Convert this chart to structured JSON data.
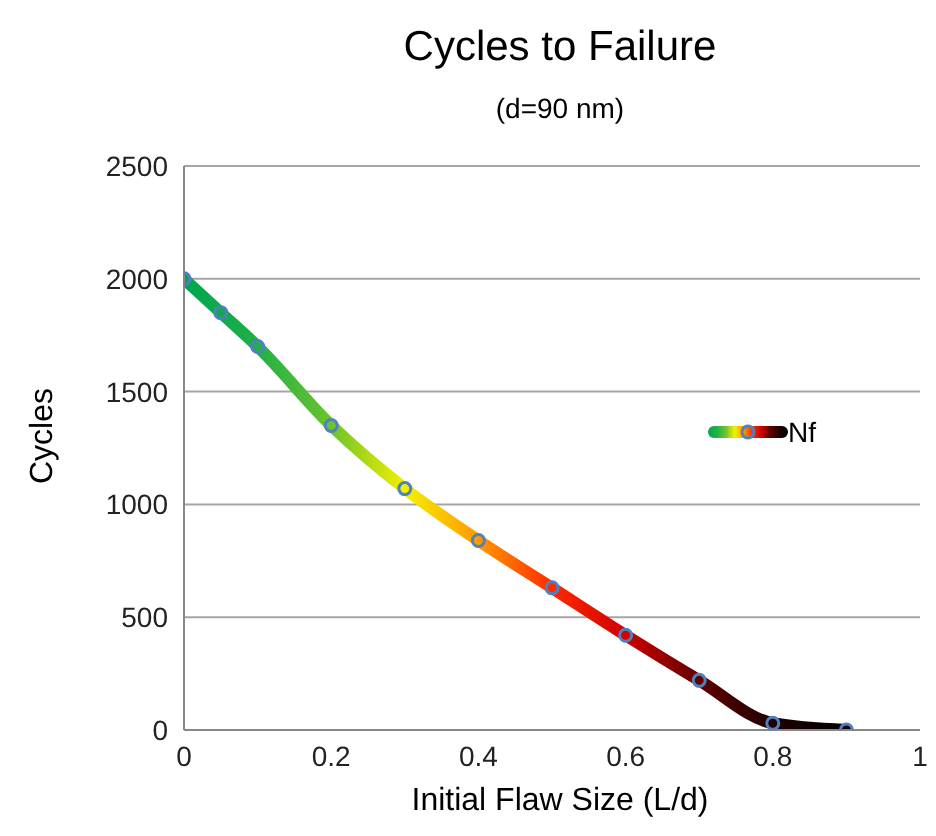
{
  "chart_data": {
    "type": "line",
    "title": "Cycles to Failure",
    "subtitle": "(d=90 nm)",
    "xlabel": "Initial Flaw Size (L/d)",
    "ylabel": "Cycles",
    "x": [
      0,
      0.05,
      0.1,
      0.2,
      0.3,
      0.4,
      0.5,
      0.6,
      0.7,
      0.8,
      0.9
    ],
    "series": [
      {
        "name": "Nf",
        "color": "#4f81bd",
        "values": [
          2000,
          1850,
          1700,
          1350,
          1070,
          840,
          630,
          420,
          220,
          30,
          0
        ],
        "colors": [
          "#00a651",
          "#10aa4c",
          "#20b048",
          "#6cc32a",
          "#f5f000",
          "#ff9900",
          "#ff2a00",
          "#d00000",
          "#600000",
          "#200000",
          "#000000"
        ]
      }
    ],
    "xlim": [
      0,
      1
    ],
    "xticks": [
      0,
      0.2,
      0.4,
      0.6,
      0.8,
      1
    ],
    "ylim": [
      0,
      2500
    ],
    "yticks": [
      0,
      500,
      1000,
      1500,
      2000,
      2500
    ],
    "grid": "y",
    "legend": "right",
    "marker": "circle"
  }
}
